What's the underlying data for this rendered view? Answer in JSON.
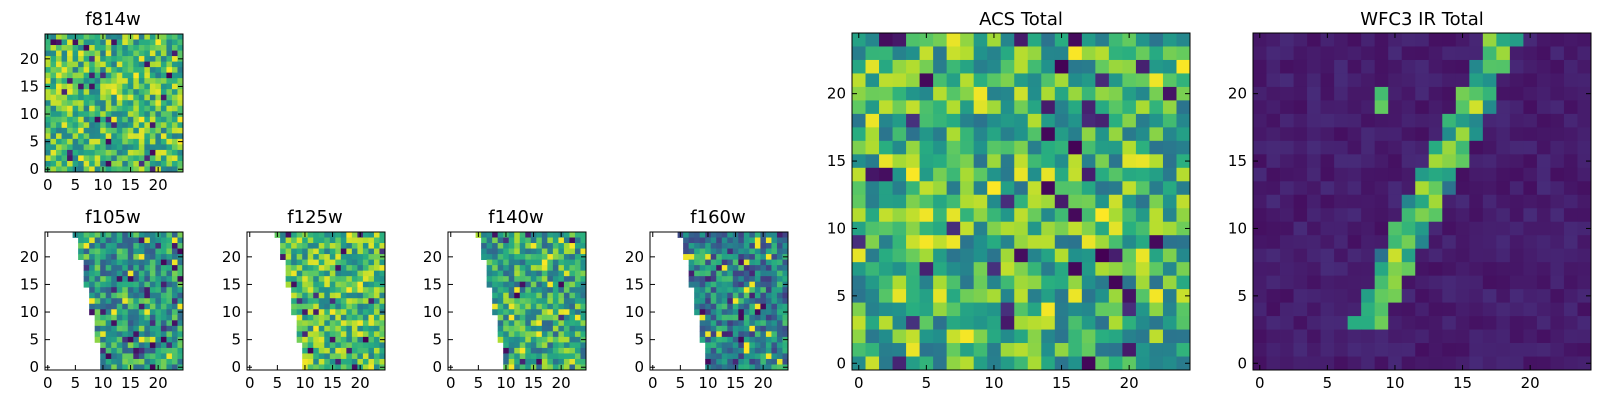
{
  "colors": {
    "viridis": [
      "#440154",
      "#472d7b",
      "#3b528b",
      "#2c728e",
      "#21918c",
      "#28ae80",
      "#5ec962",
      "#addc30",
      "#fde725"
    ]
  },
  "chart_data": [
    {
      "type": "heatmap",
      "title": "f814w",
      "colormap": "viridis",
      "grid_size": 25,
      "xlim": [
        0,
        24
      ],
      "ylim": [
        0,
        24
      ],
      "xticks": [
        0,
        5,
        10,
        15,
        20
      ],
      "yticks": [
        0,
        5,
        10,
        15,
        20
      ],
      "value_range": [
        0,
        1
      ],
      "mean_value": 0.68,
      "missing_region": "none"
    },
    {
      "type": "heatmap",
      "title": "f105w",
      "colormap": "viridis",
      "grid_size": 25,
      "xlim": [
        0,
        24
      ],
      "ylim": [
        0,
        24
      ],
      "xticks": [
        0,
        5,
        10,
        15,
        20
      ],
      "yticks": [
        0,
        5,
        10,
        15,
        20
      ],
      "value_range": [
        0,
        1
      ],
      "mean_value": 0.55,
      "missing_region": "left wedge, no data left of a diagonal from about x=5 at top to x=10 at bottom"
    },
    {
      "type": "heatmap",
      "title": "f125w",
      "colormap": "viridis",
      "grid_size": 25,
      "xlim": [
        0,
        24
      ],
      "ylim": [
        0,
        24
      ],
      "xticks": [
        0,
        5,
        10,
        15,
        20
      ],
      "yticks": [
        0,
        5,
        10,
        15,
        20
      ],
      "value_range": [
        0,
        1
      ],
      "mean_value": 0.68,
      "missing_region": "left wedge, no data left of a diagonal from about x=5 at top to x=10 at bottom"
    },
    {
      "type": "heatmap",
      "title": "f140w",
      "colormap": "viridis",
      "grid_size": 25,
      "xlim": [
        0,
        24
      ],
      "ylim": [
        0,
        24
      ],
      "xticks": [
        0,
        5,
        10,
        15,
        20
      ],
      "yticks": [
        0,
        5,
        10,
        15,
        20
      ],
      "value_range": [
        0,
        1
      ],
      "mean_value": 0.6,
      "missing_region": "left wedge, no data left of a diagonal from about x=5 at top to x=10 at bottom"
    },
    {
      "type": "heatmap",
      "title": "f160w",
      "colormap": "viridis",
      "grid_size": 25,
      "xlim": [
        0,
        24
      ],
      "ylim": [
        0,
        24
      ],
      "xticks": [
        0,
        5,
        10,
        15,
        20
      ],
      "yticks": [
        0,
        5,
        10,
        15,
        20
      ],
      "value_range": [
        0,
        1
      ],
      "mean_value": 0.45,
      "missing_region": "left wedge, no data left of a diagonal from about x=5 at top to x=10 at bottom"
    },
    {
      "type": "heatmap",
      "title": "ACS Total",
      "colormap": "viridis",
      "grid_size": 25,
      "xlim": [
        0,
        24
      ],
      "ylim": [
        0,
        24
      ],
      "xticks": [
        0,
        5,
        10,
        15,
        20
      ],
      "yticks": [
        0,
        5,
        10,
        15,
        20
      ],
      "value_range": [
        0,
        1
      ],
      "mean_value": 0.65,
      "missing_region": "none"
    },
    {
      "type": "heatmap",
      "title": "WFC3 IR Total",
      "colormap": "viridis",
      "grid_size": 25,
      "xlim": [
        0,
        24
      ],
      "ylim": [
        0,
        24
      ],
      "xticks": [
        0,
        5,
        10,
        15,
        20
      ],
      "yticks": [
        0,
        5,
        10,
        15,
        20
      ],
      "value_range": [
        0,
        1
      ],
      "mean_value": 0.1,
      "feature": "bright diagonal streak from about (8,3) to (18,24), plus a small bright spot near (9,20)",
      "missing_region": "none"
    }
  ]
}
